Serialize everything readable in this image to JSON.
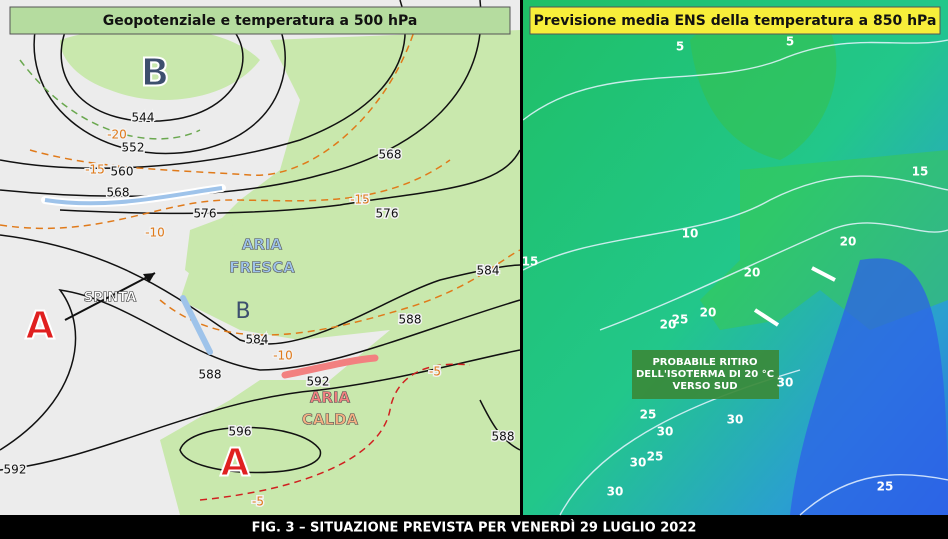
{
  "left_panel": {
    "title": "Geopotenziale e temperatura a 500 hPa",
    "labels": [
      "B",
      "544",
      "552",
      "560",
      "568",
      "576",
      "568",
      "576",
      "584",
      "588",
      "584",
      "588",
      "592",
      "596",
      "592",
      "588",
      "A",
      "B",
      "A"
    ],
    "temperature_labels": [
      "-20",
      "-15",
      "-10",
      "-15",
      "-10",
      "-5",
      "-5"
    ],
    "annotations": [
      "ARIA",
      "FRESCA",
      "SPINTA",
      "ARIA",
      "CALDA"
    ]
  },
  "right_panel": {
    "title": "Previsione media ENS della temperatura a 850 hPa",
    "labels": [
      "5",
      "5",
      "15",
      "15",
      "10",
      "20",
      "20",
      "20",
      "20",
      "25",
      "30",
      "25",
      "30",
      "30",
      "25",
      "30",
      "30",
      "25"
    ],
    "note": [
      "PROBABILE RITIRO",
      "DELL'ISOTERMA DI 20 °C",
      "VERSO SUD"
    ]
  },
  "caption": "FIG. 3 – SITUAZIONE PREVISTA PER VENERDÌ 29 LUGLIO 2022"
}
